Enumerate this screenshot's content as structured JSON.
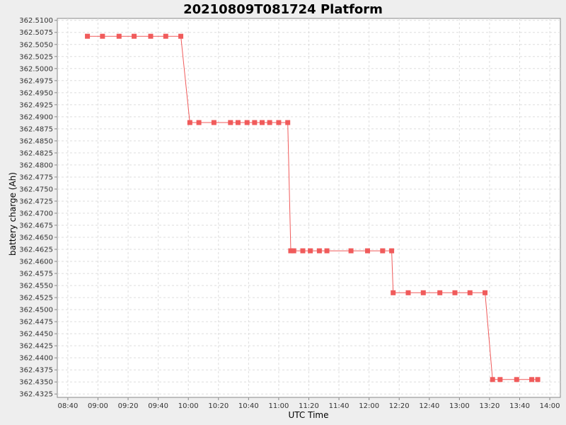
{
  "chart_data": {
    "type": "line",
    "title": "20210809T081724 Platform",
    "xlabel": "UTC Time",
    "ylabel": "battery charge (Ah)",
    "x_ticks": [
      "08:40",
      "09:00",
      "09:20",
      "09:40",
      "10:00",
      "10:20",
      "10:40",
      "11:00",
      "11:20",
      "11:40",
      "12:00",
      "12:20",
      "12:40",
      "13:00",
      "13:20",
      "13:40",
      "14:00"
    ],
    "y_ticks": [
      "362.4325",
      "362.4350",
      "362.4375",
      "362.4400",
      "362.4425",
      "362.4450",
      "362.4475",
      "362.4500",
      "362.4525",
      "362.4550",
      "362.4575",
      "362.4600",
      "362.4625",
      "362.4650",
      "362.4675",
      "362.4700",
      "362.4725",
      "362.4750",
      "362.4775",
      "362.4800",
      "362.4825",
      "362.4850",
      "362.4875",
      "362.4900",
      "362.4925",
      "362.4950",
      "362.4975",
      "362.5000",
      "362.5025",
      "362.5050",
      "362.5075",
      "362.5100"
    ],
    "xlim": [
      "08:33",
      "14:07"
    ],
    "ylim": [
      362.4318,
      362.5104
    ],
    "grid": true,
    "series": [
      {
        "color": "#f05b5b",
        "marker": "square",
        "points": [
          [
            "08:53",
            362.5067
          ],
          [
            "09:03",
            362.5067
          ],
          [
            "09:14",
            362.5067
          ],
          [
            "09:24",
            362.5067
          ],
          [
            "09:35",
            362.5067
          ],
          [
            "09:45",
            362.5067
          ],
          [
            "09:55",
            362.5067
          ],
          [
            "10:01",
            362.4888
          ],
          [
            "10:07",
            362.4888
          ],
          [
            "10:17",
            362.4888
          ],
          [
            "10:28",
            362.4888
          ],
          [
            "10:33",
            362.4888
          ],
          [
            "10:39",
            362.4888
          ],
          [
            "10:44",
            362.4888
          ],
          [
            "10:49",
            362.4888
          ],
          [
            "10:54",
            362.4888
          ],
          [
            "11:00",
            362.4888
          ],
          [
            "11:06",
            362.4888
          ],
          [
            "11:08",
            362.4622
          ],
          [
            "11:10",
            362.4622
          ],
          [
            "11:16",
            362.4622
          ],
          [
            "11:21",
            362.4622
          ],
          [
            "11:27",
            362.4622
          ],
          [
            "11:32",
            362.4622
          ],
          [
            "11:48",
            362.4622
          ],
          [
            "11:59",
            362.4622
          ],
          [
            "12:09",
            362.4622
          ],
          [
            "12:15",
            362.4622
          ],
          [
            "12:16",
            362.4535
          ],
          [
            "12:26",
            362.4535
          ],
          [
            "12:36",
            362.4535
          ],
          [
            "12:47",
            362.4535
          ],
          [
            "12:57",
            362.4535
          ],
          [
            "13:07",
            362.4535
          ],
          [
            "13:17",
            362.4535
          ],
          [
            "13:22",
            362.4355
          ],
          [
            "13:27",
            362.4355
          ],
          [
            "13:38",
            362.4355
          ],
          [
            "13:48",
            362.4355
          ],
          [
            "13:52",
            362.4355
          ]
        ]
      }
    ]
  }
}
